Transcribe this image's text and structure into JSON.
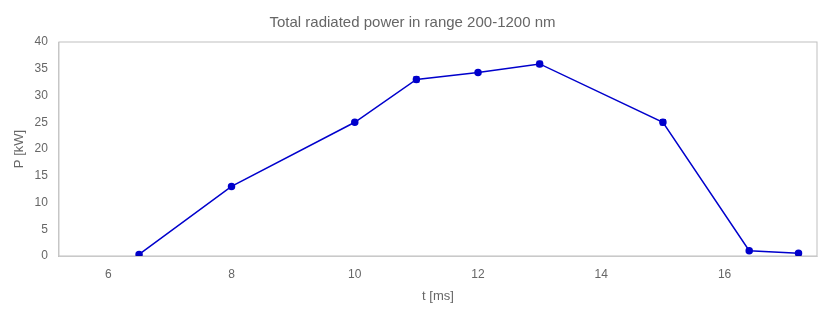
{
  "chart_data": {
    "type": "line",
    "title": "Total radiated power in range 200-1200 nm",
    "xlabel": "t [ms]",
    "ylabel": "P [kW]",
    "x": [
      6.5,
      8.0,
      10.0,
      11.0,
      12.0,
      13.0,
      15.0,
      16.4,
      17.2
    ],
    "values": [
      0.3,
      13.0,
      25.0,
      33.0,
      34.3,
      35.9,
      25.0,
      1.0,
      0.5
    ],
    "yerr": [
      0.0,
      0.0,
      0.0,
      0.5,
      0.0,
      0.5,
      0.5,
      0.0,
      0.0
    ],
    "color": "#0000cc",
    "marker": "circle",
    "line_style": "solid",
    "xlim": [
      5.2,
      17.5
    ],
    "ylim": [
      0,
      40
    ],
    "xticks": [
      6,
      8,
      10,
      12,
      14,
      16
    ],
    "yticks": [
      0,
      5,
      10,
      15,
      20,
      25,
      30,
      35,
      40
    ],
    "grid": false
  }
}
